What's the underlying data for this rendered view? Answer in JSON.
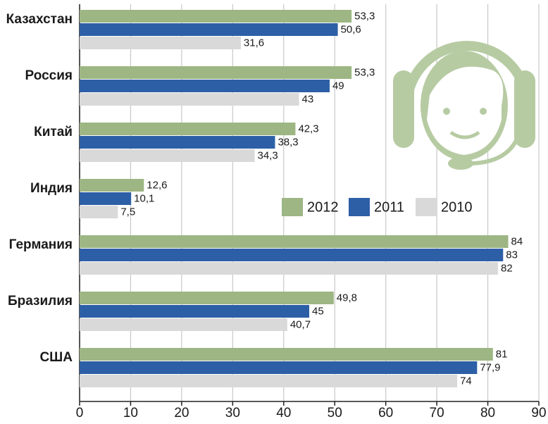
{
  "chart_data": {
    "type": "bar",
    "orientation": "horizontal",
    "categories": [
      "Казахстан",
      "Россия",
      "Китай",
      "Индия",
      "Германия",
      "Бразилия",
      "США"
    ],
    "series": [
      {
        "name": "2012",
        "color": "#9db683",
        "values": [
          53.3,
          53.3,
          42.3,
          12.6,
          84,
          49.8,
          81
        ],
        "value_labels": [
          "53,3",
          "53,3",
          "42,3",
          "12,6",
          "84",
          "49,8",
          "81"
        ]
      },
      {
        "name": "2011",
        "color": "#2d5fa6",
        "values": [
          50.6,
          49,
          38.3,
          10.1,
          83,
          45,
          77.9
        ],
        "value_labels": [
          "50,6",
          "49",
          "38,3",
          "10,1",
          "83",
          "45",
          "77,9"
        ]
      },
      {
        "name": "2010",
        "color": "#d9d9d9",
        "values": [
          31.6,
          43,
          34.3,
          7.5,
          82,
          40.7,
          74
        ],
        "value_labels": [
          "31,6",
          "43",
          "34,3",
          "7,5",
          "82",
          "40,7",
          "74"
        ]
      }
    ],
    "xlim": [
      0,
      90
    ],
    "xticks": [
      0,
      10,
      20,
      30,
      40,
      50,
      60,
      70,
      80,
      90
    ],
    "grid": true
  }
}
